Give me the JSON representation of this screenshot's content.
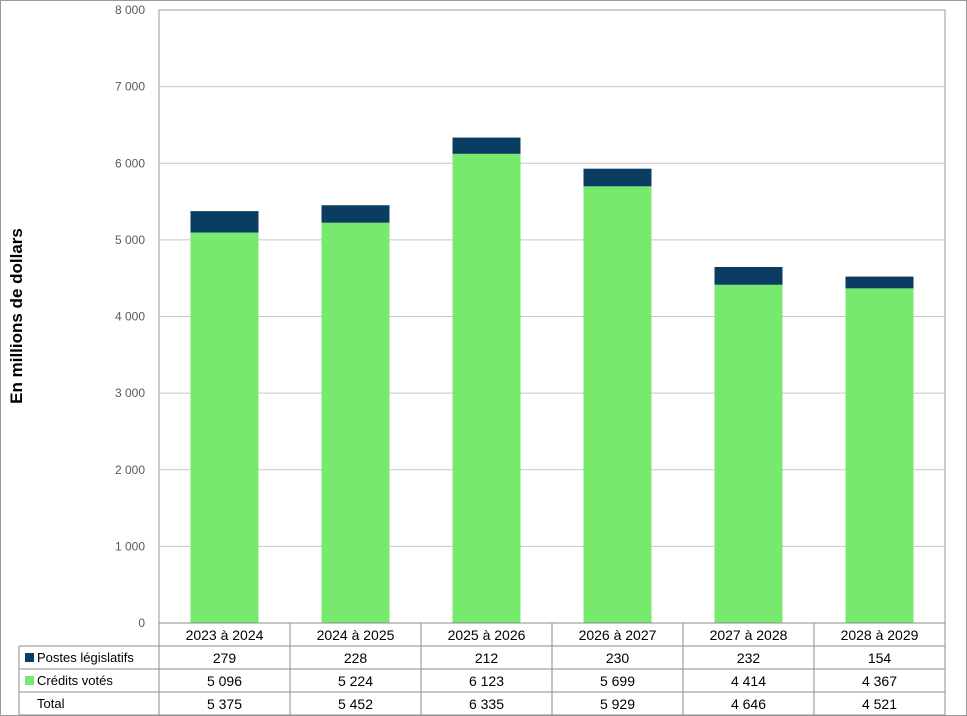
{
  "chart_data": {
    "type": "bar",
    "stacked": true,
    "ylabel": "En millions de dollars",
    "ylim": [
      0,
      8000
    ],
    "yticks": [
      0,
      1000,
      2000,
      3000,
      4000,
      5000,
      6000,
      7000,
      8000
    ],
    "ytick_labels": [
      "0",
      "1 000",
      "2 000",
      "3 000",
      "4 000",
      "5 000",
      "6 000",
      "7 000",
      "8 000"
    ],
    "grid": true,
    "categories": [
      "2023 à 2024",
      "2024 à 2025",
      "2025 à 2026",
      "2026 à 2027",
      "2027 à 2028",
      "2028 à 2029"
    ],
    "series": [
      {
        "name": "Crédits votés",
        "color": "#77ea6d",
        "values": [
          5096,
          5224,
          6123,
          5699,
          4414,
          4367
        ],
        "labels": [
          "5 096",
          "5 224",
          "6 123",
          "5 699",
          "4 414",
          "4 367"
        ]
      },
      {
        "name": "Postes législatifs",
        "color": "#0b3d63",
        "values": [
          279,
          228,
          212,
          230,
          232,
          154
        ],
        "labels": [
          "279",
          "228",
          "212",
          "230",
          "232",
          "154"
        ]
      }
    ],
    "data_table": {
      "rows": [
        {
          "label": "Postes législatifs",
          "series_index": 1
        },
        {
          "label": "Crédits votés",
          "series_index": 0
        },
        {
          "label": "Total",
          "values": [
            "5 375",
            "5 452",
            "6 335",
            "5 929",
            "4 646",
            "4 521"
          ]
        }
      ]
    }
  }
}
